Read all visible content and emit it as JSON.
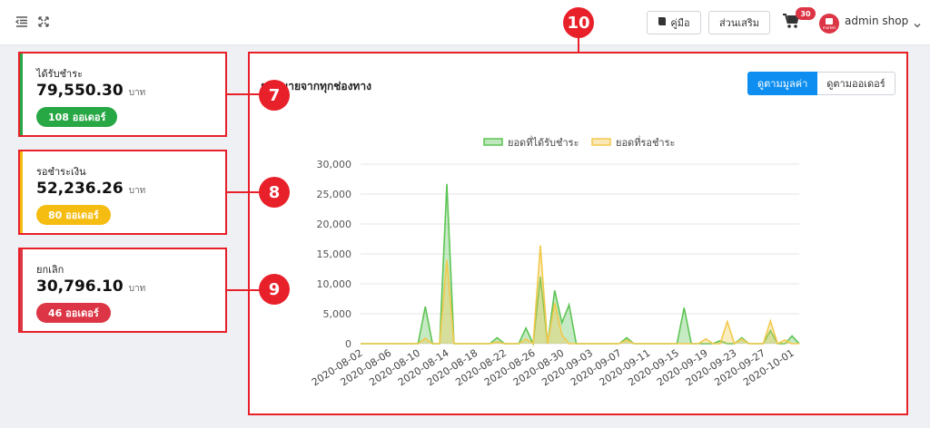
{
  "topbar": {
    "manual_label": "คู่มือ",
    "discount_label": "ส่วนเสริม",
    "cart_count": "30",
    "avatar_text": "market",
    "user_name": "admin shop"
  },
  "stats": [
    {
      "title": "ได้รับชำระ",
      "value": "79,550.30",
      "unit": "บาท",
      "badge": "108 ออเดอร์",
      "color": "#28a745",
      "callout": "7"
    },
    {
      "title": "รอชำระเงิน",
      "value": "52,236.26",
      "unit": "บาท",
      "badge": "80 ออเดอร์",
      "color": "#f5bc11",
      "callout": "8"
    },
    {
      "title": "ยกเลิก",
      "value": "30,796.10",
      "unit": "บาท",
      "badge": "46 ออเดอร์",
      "color": "#dc3545",
      "callout": "9"
    }
  ],
  "chart_panel": {
    "title": "ยอดขายจากทุกช่องทาง",
    "callout": "10",
    "toggle_value": "ดูตามมูลค่า",
    "toggle_orders": "ดูตามออเดอร์"
  },
  "chart_data": {
    "type": "area",
    "x_start": "2020-08-02",
    "x": [
      "2020-08-02",
      "2020-08-03",
      "2020-08-04",
      "2020-08-05",
      "2020-08-06",
      "2020-08-07",
      "2020-08-08",
      "2020-08-09",
      "2020-08-10",
      "2020-08-11",
      "2020-08-12",
      "2020-08-13",
      "2020-08-14",
      "2020-08-15",
      "2020-08-16",
      "2020-08-17",
      "2020-08-18",
      "2020-08-19",
      "2020-08-20",
      "2020-08-21",
      "2020-08-22",
      "2020-08-23",
      "2020-08-24",
      "2020-08-25",
      "2020-08-26",
      "2020-08-27",
      "2020-08-28",
      "2020-08-29",
      "2020-08-30",
      "2020-08-31",
      "2020-09-01",
      "2020-09-02",
      "2020-09-03",
      "2020-09-04",
      "2020-09-05",
      "2020-09-06",
      "2020-09-07",
      "2020-09-08",
      "2020-09-09",
      "2020-09-10",
      "2020-09-11",
      "2020-09-12",
      "2020-09-13",
      "2020-09-14",
      "2020-09-15",
      "2020-09-16",
      "2020-09-17",
      "2020-09-18",
      "2020-09-19",
      "2020-09-20",
      "2020-09-21",
      "2020-09-22",
      "2020-09-23",
      "2020-09-24",
      "2020-09-25",
      "2020-09-26",
      "2020-09-27",
      "2020-09-28",
      "2020-09-29",
      "2020-09-30",
      "2020-10-01",
      "2020-10-02"
    ],
    "tick_labels": [
      "2020-08-02",
      "2020-08-06",
      "2020-08-10",
      "2020-08-14",
      "2020-08-18",
      "2020-08-22",
      "2020-08-26",
      "2020-08-30",
      "2020-09-03",
      "2020-09-07",
      "2020-09-11",
      "2020-09-15",
      "2020-09-19",
      "2020-09-23",
      "2020-09-27",
      "2020-10-01"
    ],
    "series": [
      {
        "name": "ยอดที่ได้รับชำระ",
        "color": "#5cc454",
        "values": [
          0,
          0,
          0,
          0,
          0,
          0,
          0,
          0,
          0,
          6200,
          0,
          0,
          26700,
          0,
          0,
          0,
          0,
          0,
          0,
          1000,
          0,
          0,
          0,
          2600,
          0,
          11200,
          0,
          8900,
          3500,
          6500,
          0,
          0,
          0,
          0,
          0,
          0,
          0,
          1000,
          0,
          0,
          0,
          0,
          0,
          0,
          0,
          6000,
          0,
          0,
          0,
          0,
          500,
          0,
          0,
          1000,
          0,
          0,
          0,
          2200,
          0,
          0,
          1300,
          0
        ]
      },
      {
        "name": "ยอดที่รอชำระ",
        "color": "#f2c94c",
        "values": [
          0,
          0,
          0,
          0,
          0,
          0,
          0,
          0,
          0,
          900,
          0,
          0,
          14000,
          0,
          0,
          0,
          0,
          0,
          0,
          300,
          0,
          0,
          0,
          800,
          0,
          16400,
          0,
          6800,
          1500,
          0,
          0,
          0,
          0,
          0,
          0,
          0,
          0,
          600,
          0,
          0,
          0,
          0,
          0,
          0,
          0,
          0,
          0,
          0,
          800,
          0,
          0,
          3700,
          0,
          800,
          0,
          0,
          0,
          3800,
          0,
          600,
          0,
          0
        ]
      }
    ],
    "ylim": [
      0,
      30000
    ],
    "yticks": [
      "0",
      "5,000",
      "10,000",
      "15,000",
      "20,000",
      "25,000",
      "30,000"
    ],
    "legend": "top-center",
    "grid": true
  }
}
